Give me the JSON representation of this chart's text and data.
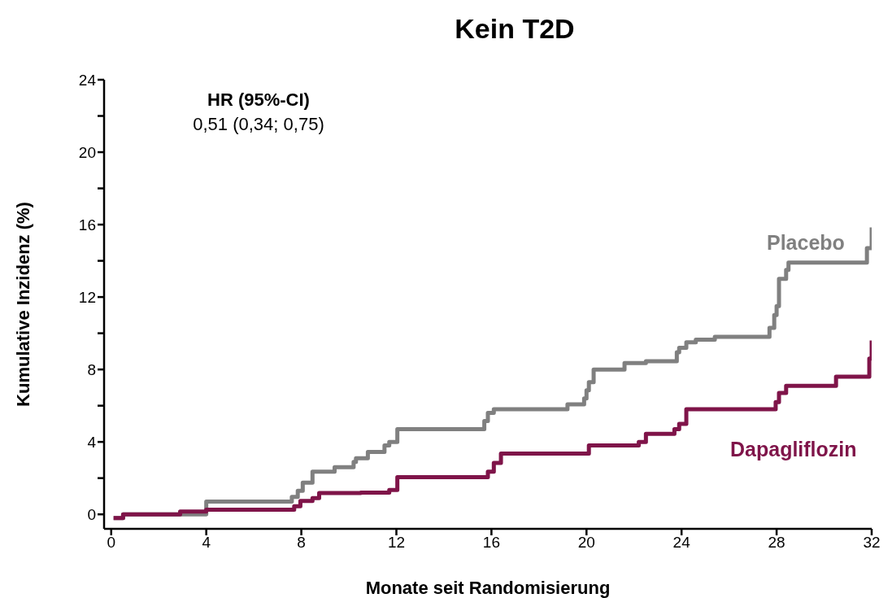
{
  "chart_data": {
    "type": "step",
    "title": "Kein T2D",
    "xlabel": "Monate seit Randomisierung",
    "ylabel": "Kumulative Inzidenz (%)",
    "annotations": [
      "HR (95%-CI)",
      "0,51 (0,34; 0,75)"
    ],
    "xlim": [
      -0.3,
      32
    ],
    "xticks": [
      0,
      4,
      8,
      12,
      16,
      20,
      24,
      28,
      32
    ],
    "ylim": [
      -0.8,
      24
    ],
    "yticks": [
      0,
      {
        "value": 2,
        "label": null
      },
      4,
      {
        "value": 6,
        "label": null
      },
      8,
      {
        "value": 10,
        "label": null
      },
      12,
      {
        "value": 14,
        "label": null
      },
      16,
      {
        "value": 18,
        "label": null
      },
      20,
      {
        "value": 22,
        "label": null
      },
      24
    ],
    "legend": false,
    "series": [
      {
        "name": "Placebo",
        "color": "#808080",
        "x": [
          0.1,
          0.5,
          4,
          7.6,
          7.85,
          8.06,
          8.47,
          9.4,
          10.2,
          10.3,
          10.8,
          11.5,
          11.7,
          12.04,
          15.7,
          15.85,
          16.1,
          19.2,
          19.9,
          20,
          20.1,
          20.3,
          21.6,
          22.5,
          23.8,
          23.9,
          24.2,
          24.6,
          25.4,
          27.7,
          27.9,
          28,
          28.1,
          28.4,
          28.5,
          31.8,
          32
        ],
        "values": [
          -0.2,
          0,
          0.7,
          0.96,
          1.3,
          1.75,
          2.36,
          2.6,
          2.9,
          3.1,
          3.45,
          3.8,
          4,
          4.7,
          5.15,
          5.6,
          5.8,
          6.07,
          6.4,
          6.85,
          7.3,
          8,
          8.35,
          8.45,
          8.95,
          9.2,
          9.5,
          9.65,
          9.8,
          10.3,
          11,
          11.5,
          13,
          13.5,
          13.9,
          14.7,
          15.85
        ]
      },
      {
        "name": "Dapagliflozin",
        "color": "#7f1449",
        "x": [
          0.1,
          0.5,
          2.9,
          4,
          7.7,
          7.96,
          8.47,
          8.75,
          10.5,
          11.7,
          12.04,
          15.85,
          16.1,
          16.4,
          20.1,
          22.2,
          22.5,
          23.7,
          23.9,
          24.2,
          27.96,
          28.1,
          28.4,
          30.5,
          31.9,
          32
        ],
        "values": [
          -0.2,
          0,
          0.15,
          0.26,
          0.45,
          0.74,
          0.9,
          1.18,
          1.2,
          1.35,
          2.05,
          2.36,
          2.84,
          3.36,
          3.8,
          4,
          4.45,
          4.7,
          5,
          5.8,
          6.2,
          6.7,
          7.1,
          7.6,
          8.6,
          9.6
        ]
      }
    ]
  }
}
